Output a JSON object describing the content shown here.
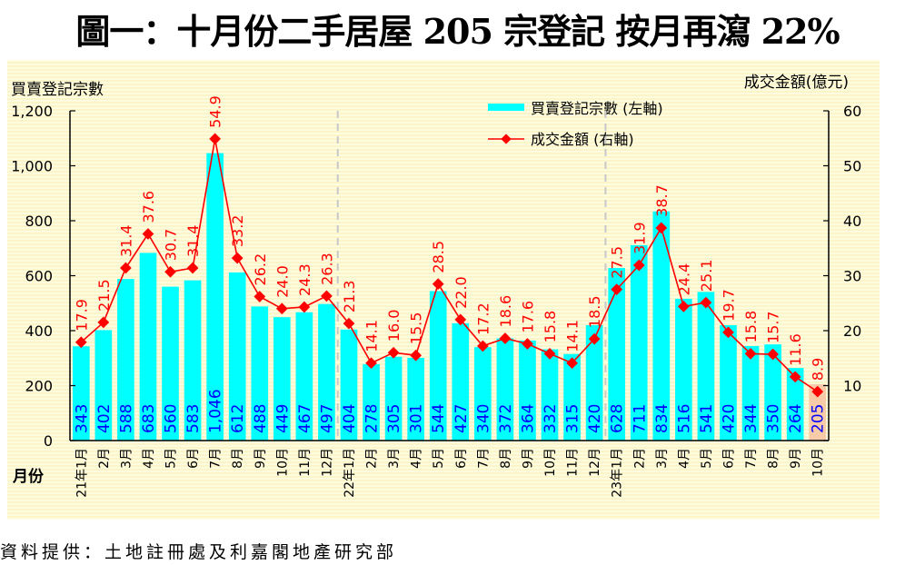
{
  "title": "圖一：十月份二手居屋 205 宗登記  按月再瀉 22%",
  "source": "資料提供：土地註冊處及利嘉閣地產研究部",
  "colors": {
    "bar": "#00ffff",
    "bar_highlight": "#f8cba8",
    "line": "#ff0000",
    "bar_label": "#0000ff",
    "line_label": "#ff0000",
    "divider": "#c8c8c8"
  },
  "chart_data": {
    "type": "bar",
    "title": "圖一：十月份二手居屋 205 宗登記  按月再瀉 22%",
    "xlabel": "月份",
    "ylabel": "買賣登記宗數",
    "y2label": "成交金額(億元)",
    "ylim": [
      0,
      1200
    ],
    "y2lim": [
      0,
      60
    ],
    "yticks": [
      "0",
      "200",
      "400",
      "600",
      "800",
      "1,000",
      "1,200"
    ],
    "y2ticks": [
      "10",
      "20",
      "30",
      "40",
      "50",
      "60"
    ],
    "grid": false,
    "legend_position": "top-center-right",
    "categories": [
      "21年1月",
      "2月",
      "3月",
      "4月",
      "5月",
      "6月",
      "7月",
      "8月",
      "9月",
      "10月",
      "11月",
      "12月",
      "22年1月",
      "2月",
      "3月",
      "4月",
      "5月",
      "6月",
      "7月",
      "8月",
      "9月",
      "10月",
      "11月",
      "12月",
      "23年1月",
      "2月",
      "3月",
      "4月",
      "5月",
      "6月",
      "7月",
      "8月",
      "9月",
      "10月"
    ],
    "year_dividers_before_index": [
      12,
      24
    ],
    "highlight_index": 33,
    "series": [
      {
        "name": "買賣登記宗數 (左軸)",
        "type": "bar",
        "axis": "left",
        "values": [
          343,
          402,
          588,
          683,
          560,
          583,
          1046,
          612,
          488,
          449,
          467,
          497,
          404,
          278,
          305,
          301,
          544,
          427,
          340,
          372,
          364,
          332,
          315,
          420,
          628,
          711,
          834,
          516,
          541,
          420,
          344,
          350,
          264,
          205
        ],
        "labels": [
          "343",
          "402",
          "588",
          "683",
          "560",
          "583",
          "1,046",
          "612",
          "488",
          "449",
          "467",
          "497",
          "404",
          "278",
          "305",
          "301",
          "544",
          "427",
          "340",
          "372",
          "364",
          "332",
          "315",
          "420",
          "628",
          "711",
          "834",
          "516",
          "541",
          "420",
          "344",
          "350",
          "264",
          "205"
        ]
      },
      {
        "name": "成交金額 (右軸)",
        "type": "line",
        "axis": "right",
        "values": [
          17.9,
          21.5,
          31.4,
          37.6,
          30.7,
          31.4,
          54.9,
          33.2,
          26.2,
          24.0,
          24.3,
          26.3,
          21.3,
          14.1,
          16.0,
          15.5,
          28.5,
          22.0,
          17.2,
          18.6,
          17.6,
          15.8,
          14.1,
          18.5,
          27.5,
          31.9,
          38.7,
          24.4,
          25.1,
          19.7,
          15.8,
          15.7,
          11.6,
          8.9
        ],
        "labels": [
          "17.9",
          "21.5",
          "31.4",
          "37.6",
          "30.7",
          "31.4",
          "54.9",
          "33.2",
          "26.2",
          "24.0",
          "24.3",
          "26.3",
          "21.3",
          "14.1",
          "16.0",
          "15.5",
          "28.5",
          "22.0",
          "17.2",
          "18.6",
          "17.6",
          "15.8",
          "14.1",
          "18.5",
          "27.5",
          "31.9",
          "38.7",
          "24.4",
          "25.1",
          "19.7",
          "15.8",
          "15.7",
          "11.6",
          "8.9"
        ]
      }
    ]
  }
}
